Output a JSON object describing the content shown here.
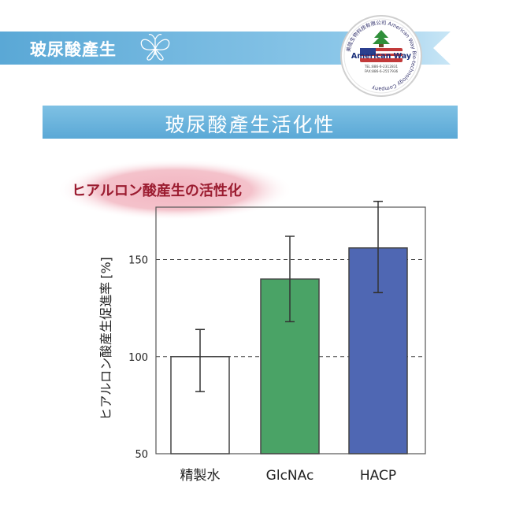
{
  "banner": {
    "title": "玻尿酸產生"
  },
  "logo": {
    "ring_text": "美陸生物科技有限公司 American Way Bio-technology Company",
    "name": "American Way",
    "tel": "TEL:886-6-2312831",
    "fax": "FAX:886-6-2557936"
  },
  "section": {
    "title": "玻尿酸產生活化性"
  },
  "colors": {
    "banner_blue": "#5aa8d6",
    "purified_water": "#ffffff",
    "glcnac": "#4aa366",
    "hacp": "#4f67b3",
    "subtitle_red": "#9b1c30"
  },
  "chart_data": {
    "type": "bar",
    "subtitle": "ヒアルロン酸産生の活性化",
    "ylabel": "ヒアルロン酸産生促進率",
    "yunit": "[%]",
    "categories": [
      "精製水",
      "GlcNAc",
      "HACP"
    ],
    "values": [
      100,
      140,
      156
    ],
    "error_low": [
      82,
      118,
      133
    ],
    "error_high": [
      114,
      162,
      180
    ],
    "ylim": [
      50,
      177
    ],
    "yticks": [
      50,
      100,
      150
    ],
    "gridlines": [
      100,
      150
    ],
    "legend": "none"
  }
}
